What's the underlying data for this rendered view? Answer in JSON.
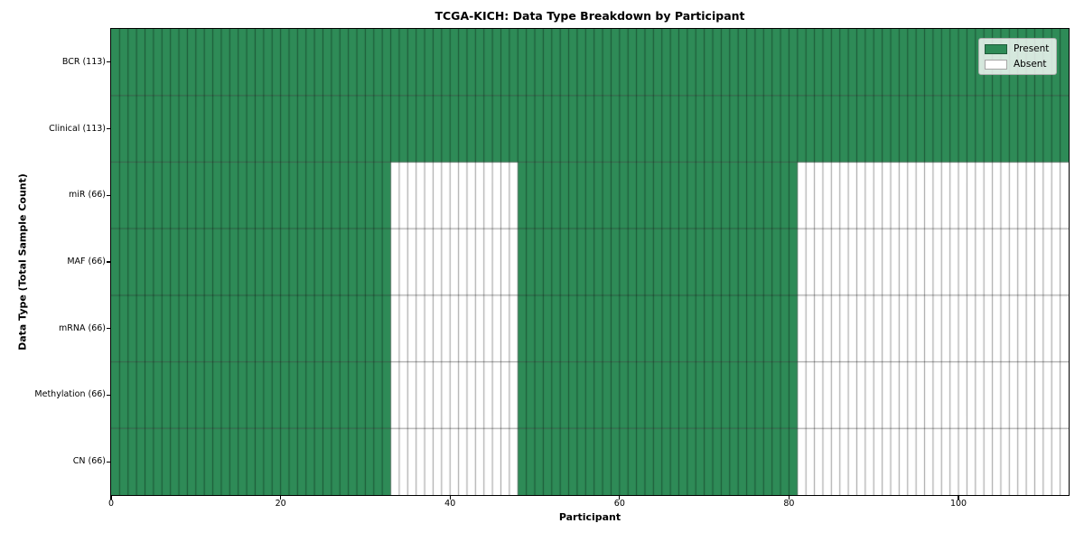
{
  "chart_data": {
    "type": "heatmap",
    "title": "TCGA-KICH: Data Type Breakdown by Participant",
    "xlabel": "Participant",
    "ylabel": "Data Type (Total Sample Count)",
    "x_ticks": [
      0,
      20,
      40,
      60,
      80,
      100
    ],
    "xlim": [
      0,
      113
    ],
    "n_participants": 113,
    "grid": true,
    "colors": {
      "present": "#2e8b57",
      "absent": "#ffffff"
    },
    "legend": {
      "position": "upper right",
      "entries": [
        {
          "label": "Present",
          "color": "#2e8b57"
        },
        {
          "label": "Absent",
          "color": "#ffffff"
        }
      ]
    },
    "rows": [
      {
        "label": "BCR (113)",
        "data_type": "BCR",
        "total_samples": 113,
        "present_ranges": [
          [
            0,
            113
          ]
        ]
      },
      {
        "label": "Clinical (113)",
        "data_type": "Clinical",
        "total_samples": 113,
        "present_ranges": [
          [
            0,
            113
          ]
        ]
      },
      {
        "label": "miR (66)",
        "data_type": "miR",
        "total_samples": 66,
        "present_ranges": [
          [
            0,
            33
          ],
          [
            48,
            81
          ]
        ]
      },
      {
        "label": "MAF (66)",
        "data_type": "MAF",
        "total_samples": 66,
        "present_ranges": [
          [
            0,
            33
          ],
          [
            48,
            81
          ]
        ]
      },
      {
        "label": "mRNA (66)",
        "data_type": "mRNA",
        "total_samples": 66,
        "present_ranges": [
          [
            0,
            33
          ],
          [
            48,
            81
          ]
        ]
      },
      {
        "label": "Methylation (66)",
        "data_type": "Methylation",
        "total_samples": 66,
        "present_ranges": [
          [
            0,
            33
          ],
          [
            48,
            81
          ]
        ]
      },
      {
        "label": "CN (66)",
        "data_type": "CN",
        "total_samples": 66,
        "present_ranges": [
          [
            0,
            33
          ],
          [
            48,
            81
          ]
        ]
      }
    ]
  }
}
